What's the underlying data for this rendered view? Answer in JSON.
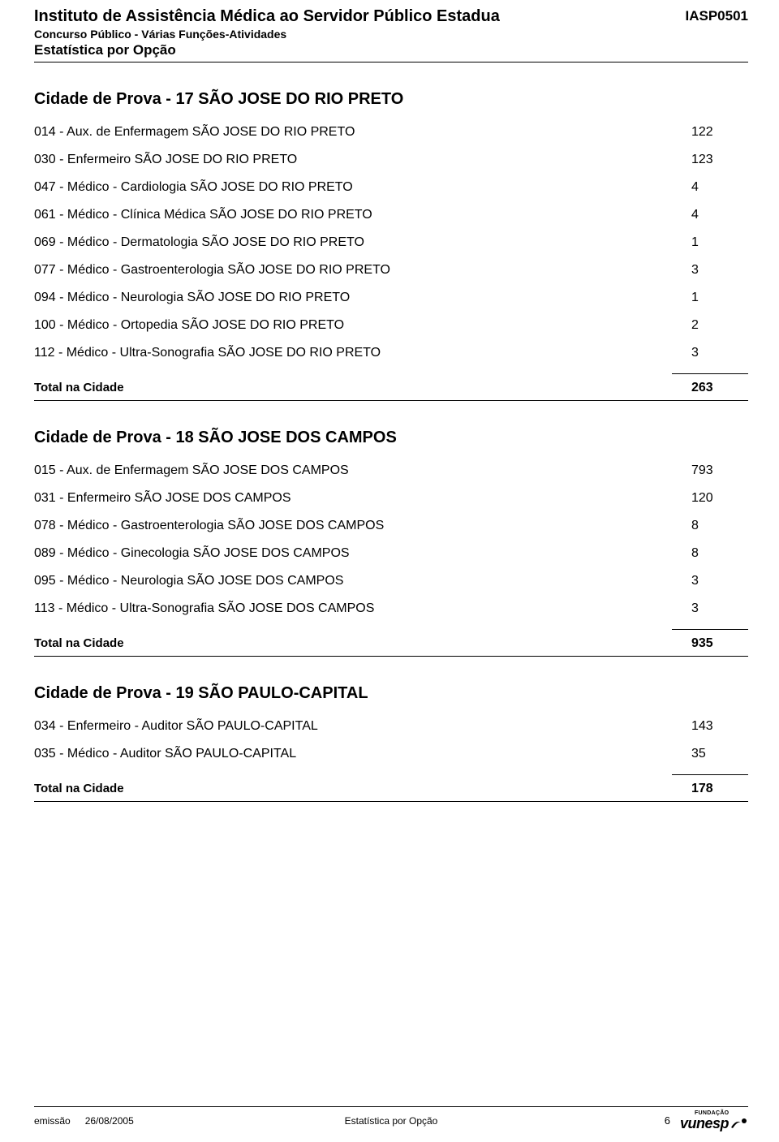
{
  "header": {
    "institution": "Instituto de Assistência Médica ao Servidor Público Estadua",
    "subtitle": "Concurso Público - Várias Funções-Atividades",
    "report_title": "Estatística por Opção",
    "code": "IASP0501"
  },
  "sections": [
    {
      "title": "Cidade de Prova - 17  SÃO JOSE DO RIO PRETO",
      "rows": [
        {
          "label": "014 - Aux. de Enfermagem  SÃO JOSE DO RIO PRETO",
          "value": "122"
        },
        {
          "label": "030 - Enfermeiro  SÃO JOSE DO RIO PRETO",
          "value": "123"
        },
        {
          "label": "047 - Médico - Cardiologia  SÃO JOSE DO RIO PRETO",
          "value": "4"
        },
        {
          "label": "061 - Médico - Clínica Médica  SÃO JOSE DO RIO PRETO",
          "value": "4"
        },
        {
          "label": "069 - Médico - Dermatologia  SÃO JOSE DO RIO PRETO",
          "value": "1"
        },
        {
          "label": "077 - Médico - Gastroenterologia  SÃO JOSE DO RIO PRETO",
          "value": "3"
        },
        {
          "label": "094 - Médico - Neurologia  SÃO JOSE DO RIO PRETO",
          "value": "1"
        },
        {
          "label": "100 - Médico - Ortopedia  SÃO JOSE DO RIO PRETO",
          "value": "2"
        },
        {
          "label": "112 - Médico - Ultra-Sonografia  SÃO JOSE DO RIO PRETO",
          "value": "3"
        }
      ],
      "total_label": "Total na Cidade",
      "total_value": "263"
    },
    {
      "title": "Cidade de Prova - 18  SÃO JOSE DOS CAMPOS",
      "rows": [
        {
          "label": "015 - Aux. de Enfermagem  SÃO JOSE DOS CAMPOS",
          "value": "793"
        },
        {
          "label": "031 - Enfermeiro  SÃO JOSE DOS CAMPOS",
          "value": "120"
        },
        {
          "label": "078 - Médico - Gastroenterologia  SÃO JOSE DOS CAMPOS",
          "value": "8"
        },
        {
          "label": "089 - Médico - Ginecologia  SÃO JOSE DOS CAMPOS",
          "value": "8"
        },
        {
          "label": "095 - Médico - Neurologia  SÃO JOSE DOS CAMPOS",
          "value": "3"
        },
        {
          "label": "113 - Médico - Ultra-Sonografia  SÃO JOSE DOS CAMPOS",
          "value": "3"
        }
      ],
      "total_label": "Total na Cidade",
      "total_value": "935"
    },
    {
      "title": "Cidade de Prova - 19  SÃO PAULO-CAPITAL",
      "rows": [
        {
          "label": "034 - Enfermeiro - Auditor  SÃO PAULO-CAPITAL",
          "value": "143"
        },
        {
          "label": "035 - Médico - Auditor  SÃO PAULO-CAPITAL",
          "value": "35"
        }
      ],
      "total_label": "Total na Cidade",
      "total_value": "178"
    }
  ],
  "footer": {
    "emissao_label": "emissão",
    "emissao_date": "26/08/2005",
    "center_text": "Estatística por Opção",
    "page_number": "6",
    "logo_top": "FUNDAÇÃO",
    "logo_text": "vunesp"
  },
  "colors": {
    "text": "#000000",
    "background": "#ffffff",
    "rule": "#000000"
  }
}
